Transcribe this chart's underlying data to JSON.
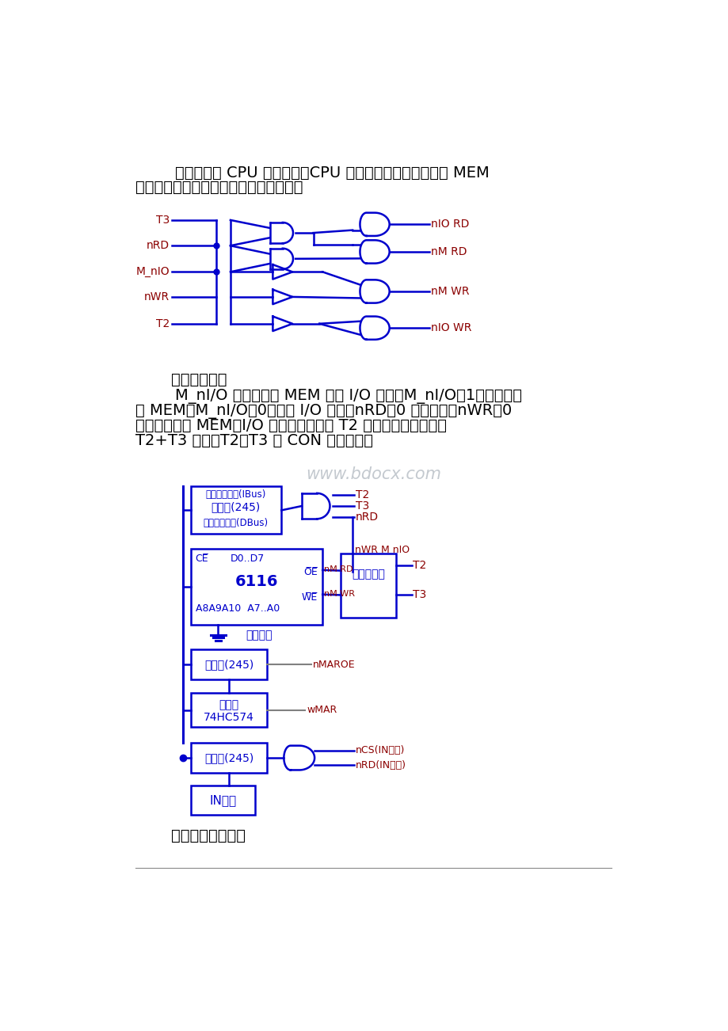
{
  "bg_color": "#ffffff",
  "text_color": "#1a1a1a",
  "blue_color": "#0000CC",
  "dark_red": "#8B0000",
  "black": "#000000",
  "para1_line1": "        存贮器挂在 CPU 的总线上，CPU 通过读写控制逻辑，控制 MEM",
  "para1_line2": "的读写。实验中的读写控制逻辑如下图：",
  "caption1": "读写控制逻辑",
  "para2_lines": [
    "        M_nI/O 用来选择对 MEM 还是 I/O 读写，M_nI/O＝1，选择存贮",
    "器 MEM；M_nI/O＝0，选择 I/O 设备。nRD＝0 为读操作；nWR＝0",
    "为写操作。对 MEM、I/O 的写脉冲宽度与 T2 一致；读脉冲宽度与",
    "T2+T3 一致，T2、T3 由 CON 单元提供。"
  ],
  "caption2": "存贮器实验原理图",
  "watermark": "www.bdocx.com",
  "input_labels": [
    "T3",
    "nRD",
    "M_nIO",
    "nWR",
    "T2"
  ],
  "output_labels": [
    "nIO RD",
    "nM RD",
    "nM WR",
    "nIO WR"
  ]
}
